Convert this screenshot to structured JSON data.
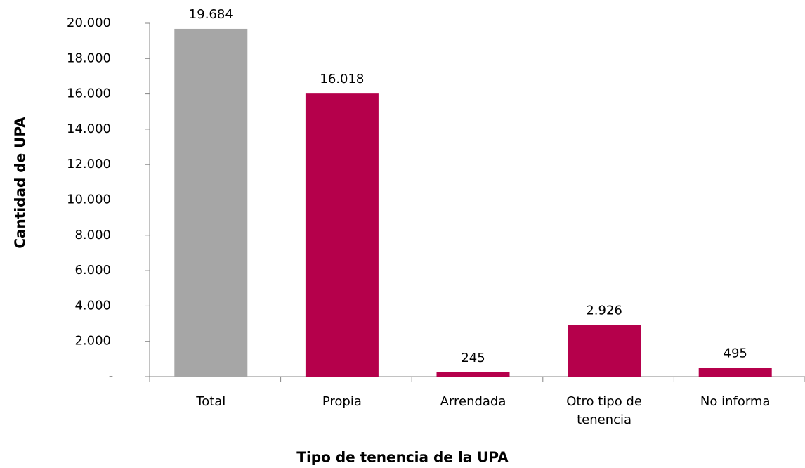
{
  "chart_data": {
    "type": "bar",
    "x_label": "Tipo de tenencia de la UPA",
    "y_label": "Cantidad de UPA",
    "categories": [
      "Total",
      "Propia",
      "Arrendada",
      "Otro tipo de tenencia",
      "No informa"
    ],
    "values": [
      19684,
      16018,
      245,
      2926,
      495
    ],
    "value_labels": [
      "19.684",
      "16.018",
      "245",
      "2.926",
      "495"
    ],
    "colors": [
      "#a6a6a6",
      "#b5004b",
      "#b5004b",
      "#b5004b",
      "#b5004b"
    ],
    "ylim": [
      0,
      20000
    ],
    "yticks": [
      {
        "value": 0,
        "label": "-"
      },
      {
        "value": 2000,
        "label": "2.000"
      },
      {
        "value": 4000,
        "label": "4.000"
      },
      {
        "value": 6000,
        "label": "6.000"
      },
      {
        "value": 8000,
        "label": "8.000"
      },
      {
        "value": 10000,
        "label": "10.000"
      },
      {
        "value": 12000,
        "label": "12.000"
      },
      {
        "value": 14000,
        "label": "14.000"
      },
      {
        "value": 16000,
        "label": "16.000"
      },
      {
        "value": 18000,
        "label": "18.000"
      },
      {
        "value": 20000,
        "label": "20.000"
      }
    ],
    "grid": false
  }
}
